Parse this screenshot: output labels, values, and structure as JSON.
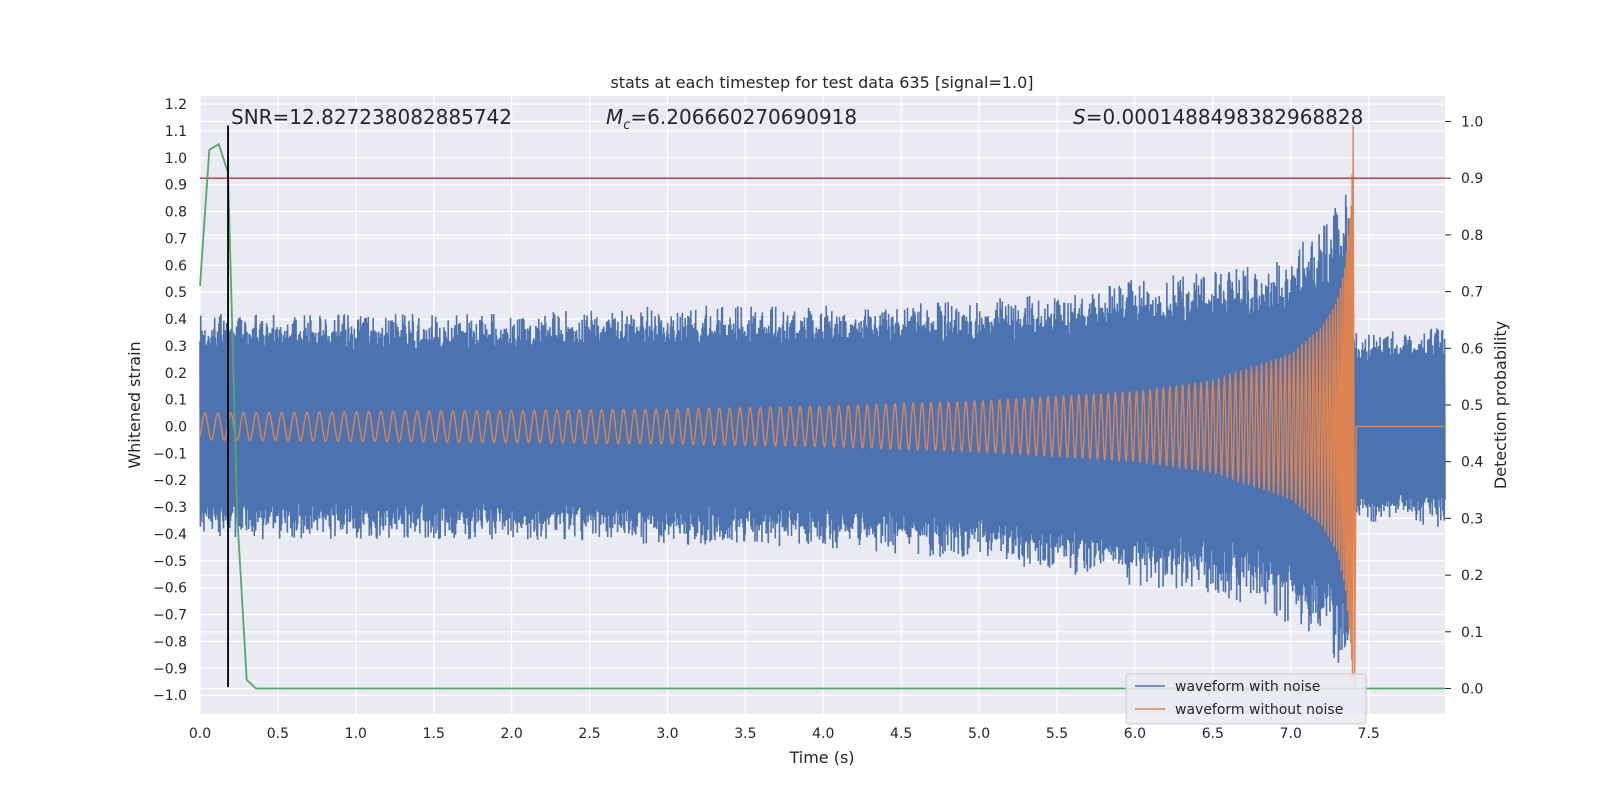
{
  "chart_data": {
    "type": "line",
    "title": "stats at each timestep for test data 635 [signal=1.0]",
    "xlabel": "Time (s)",
    "ylabel": "Whitened strain",
    "y2label": "Detection probability",
    "xlim": [
      0.0,
      7.99
    ],
    "ylim": [
      -1.07,
      1.23
    ],
    "y2lim": [
      -0.045,
      1.045
    ],
    "x_ticks": [
      0.0,
      0.5,
      1.0,
      1.5,
      2.0,
      2.5,
      3.0,
      3.5,
      4.0,
      4.5,
      5.0,
      5.5,
      6.0,
      6.5,
      7.0,
      7.5
    ],
    "x_tick_labels": [
      "0.0",
      "0.5",
      "1.0",
      "1.5",
      "2.0",
      "2.5",
      "3.0",
      "3.5",
      "4.0",
      "4.5",
      "5.0",
      "5.5",
      "6.0",
      "6.5",
      "7.0",
      "7.5"
    ],
    "y_ticks": [
      1.2,
      1.1,
      1.0,
      0.9,
      0.8,
      0.7,
      0.6,
      0.5,
      0.4,
      0.3,
      0.2,
      0.1,
      0.0,
      -0.1,
      -0.2,
      -0.3,
      -0.4,
      -0.5,
      -0.6,
      -0.7,
      -0.8,
      -0.9,
      -1.0
    ],
    "y_tick_labels": [
      "1.2",
      "1.1",
      "1.0",
      "0.9",
      "0.8",
      "0.7",
      "0.6",
      "0.5",
      "0.4",
      "0.3",
      "0.2",
      "0.1",
      "0.0",
      "−0.1",
      "−0.2",
      "−0.3",
      "−0.4",
      "−0.5",
      "−0.6",
      "−0.7",
      "−0.8",
      "−0.9",
      "−1.0"
    ],
    "y2_ticks": [
      1.0,
      0.9,
      0.8,
      0.7,
      0.6,
      0.5,
      0.4,
      0.3,
      0.2,
      0.1,
      0.0
    ],
    "y2_tick_labels": [
      "1.0",
      "0.9",
      "0.8",
      "0.7",
      "0.6",
      "0.5",
      "0.4",
      "0.3",
      "0.2",
      "0.1",
      "0.0"
    ],
    "grid": true,
    "legend_position": "bottom-right",
    "annotations": {
      "snr": "SNR=12.827238082885742",
      "mc_symbol": "M",
      "mc_sub": "c",
      "mc_value": "=6.206660270690918",
      "s_symbol": "S",
      "s_value": "=0.0001488498382968828"
    },
    "series": [
      {
        "name": "waveform with noise",
        "color": "#4c72b0",
        "axis": "left",
        "noise_amplitude_approx": 0.42,
        "peak_time": 7.38,
        "envelope_samples": {
          "x": [
            0.0,
            1.0,
            2.0,
            3.0,
            4.0,
            5.0,
            5.5,
            6.0,
            6.5,
            6.8,
            7.0,
            7.2,
            7.3,
            7.38,
            7.4,
            7.99
          ],
          "upper": [
            0.42,
            0.42,
            0.42,
            0.45,
            0.45,
            0.47,
            0.5,
            0.55,
            0.58,
            0.6,
            0.65,
            0.75,
            0.85,
            0.91,
            0.35,
            0.38
          ],
          "lower": [
            -0.42,
            -0.42,
            -0.42,
            -0.44,
            -0.45,
            -0.5,
            -0.55,
            -0.6,
            -0.62,
            -0.68,
            -0.75,
            -0.8,
            -0.9,
            -0.92,
            -0.35,
            -0.38
          ]
        }
      },
      {
        "name": "waveform without noise",
        "color": "#dd8452",
        "axis": "left",
        "merger_time": 7.4,
        "envelope_samples": {
          "x": [
            0.0,
            1.0,
            2.0,
            3.0,
            4.0,
            5.0,
            6.0,
            6.5,
            7.0,
            7.2,
            7.3,
            7.35,
            7.39,
            7.4
          ],
          "amplitude": [
            0.05,
            0.055,
            0.06,
            0.065,
            0.075,
            0.095,
            0.13,
            0.17,
            0.27,
            0.37,
            0.47,
            0.6,
            0.85,
            1.1
          ]
        }
      },
      {
        "name": "detection probability",
        "color": "#55a868",
        "axis": "right",
        "x": [
          0.0,
          0.06,
          0.12,
          0.18,
          0.24,
          0.3,
          0.36,
          7.99
        ],
        "y": [
          0.71,
          0.95,
          0.96,
          0.91,
          0.3,
          0.015,
          0.0,
          0.0
        ]
      }
    ],
    "threshold": {
      "value": 0.9,
      "axis": "right",
      "color": "#c44e52"
    },
    "vertical_marker": {
      "x": 0.18,
      "y_from": -0.97,
      "y_to": 1.12,
      "color": "#000000"
    }
  }
}
